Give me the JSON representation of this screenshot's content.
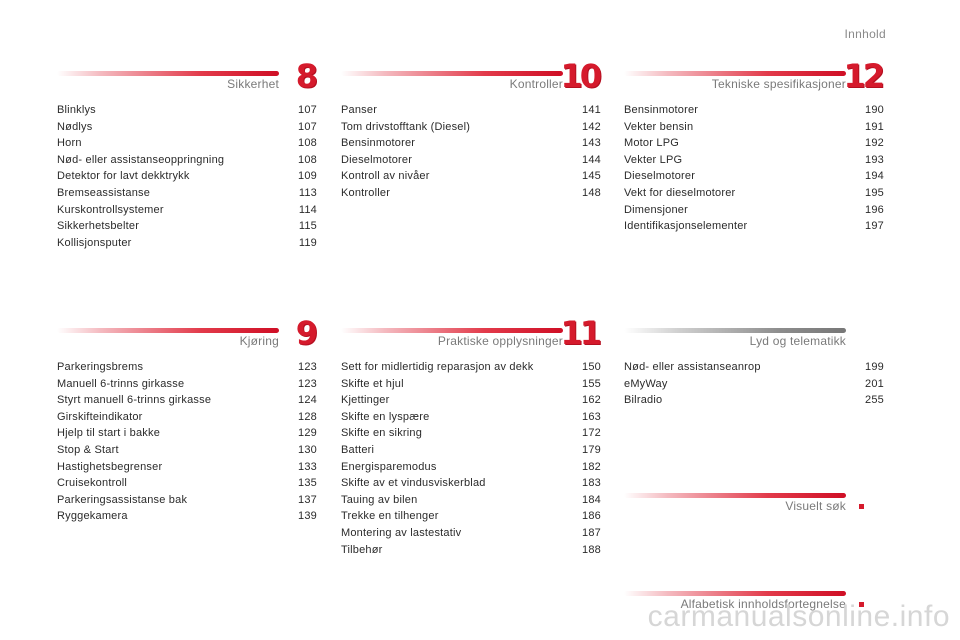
{
  "header": {
    "title": "Innhold"
  },
  "sections": {
    "s8": {
      "title": "Sikkerhet",
      "number": "8",
      "entries": [
        {
          "label": "Blinklys",
          "page": "107"
        },
        {
          "label": "Nødlys",
          "page": "107"
        },
        {
          "label": "Horn",
          "page": "108"
        },
        {
          "label": "Nød- eller assistanseoppringning",
          "page": "108"
        },
        {
          "label": "Detektor for lavt dekktrykk",
          "page": "109"
        },
        {
          "label": "Bremseassistanse",
          "page": "113"
        },
        {
          "label": "Kurskontrollsystemer",
          "page": "114"
        },
        {
          "label": "Sikkerhetsbelter",
          "page": "115"
        },
        {
          "label": "Kollisjonsputer",
          "page": "119"
        }
      ]
    },
    "s10": {
      "title": "Kontroller",
      "number": "10",
      "entries": [
        {
          "label": "Panser",
          "page": "141"
        },
        {
          "label": "Tom drivstofftank (Diesel)",
          "page": "142"
        },
        {
          "label": "Bensinmotorer",
          "page": "143"
        },
        {
          "label": "Dieselmotorer",
          "page": "144"
        },
        {
          "label": "Kontroll av nivåer",
          "page": "145"
        },
        {
          "label": "Kontroller",
          "page": "148"
        }
      ]
    },
    "s12": {
      "title": "Tekniske spesifikasjoner",
      "number": "12",
      "entries": [
        {
          "label": "Bensinmotorer",
          "page": "190"
        },
        {
          "label": "Vekter bensin",
          "page": "191"
        },
        {
          "label": "Motor LPG",
          "page": "192"
        },
        {
          "label": "Vekter LPG",
          "page": "193"
        },
        {
          "label": "Dieselmotorer",
          "page": "194"
        },
        {
          "label": "Vekt for dieselmotorer",
          "page": "195"
        },
        {
          "label": "Dimensjoner",
          "page": "196"
        },
        {
          "label": "Identifikasjonselementer",
          "page": "197"
        }
      ]
    },
    "s9": {
      "title": "Kjøring",
      "number": "9",
      "entries": [
        {
          "label": "Parkeringsbrems",
          "page": "123"
        },
        {
          "label": "Manuell 6-trinns girkasse",
          "page": "123"
        },
        {
          "label": "Styrt manuell 6-trinns girkasse",
          "page": "124"
        },
        {
          "label": "Girskifteindikator",
          "page": "128"
        },
        {
          "label": "Hjelp til start i bakke",
          "page": "129"
        },
        {
          "label": "Stop & Start",
          "page": "130"
        },
        {
          "label": "Hastighetsbegrenser",
          "page": "133"
        },
        {
          "label": "Cruisekontroll",
          "page": "135"
        },
        {
          "label": "Parkeringsassistanse bak",
          "page": "137"
        },
        {
          "label": "Ryggekamera",
          "page": "139"
        }
      ]
    },
    "s11": {
      "title": "Praktiske opplysninger",
      "number": "11",
      "entries": [
        {
          "label": "Sett for midlertidig reparasjon av dekk",
          "page": "150"
        },
        {
          "label": "Skifte et hjul",
          "page": "155"
        },
        {
          "label": "Kjettinger",
          "page": "162"
        },
        {
          "label": "Skifte en lyspære",
          "page": "163"
        },
        {
          "label": "Skifte en sikring",
          "page": "172"
        },
        {
          "label": "Batteri",
          "page": "179"
        },
        {
          "label": "Energisparemodus",
          "page": "182"
        },
        {
          "label": "Skifte av et vindusviskerblad",
          "page": "183"
        },
        {
          "label": "Tauing av bilen",
          "page": "184"
        },
        {
          "label": "Trekke en tilhenger",
          "page": "186"
        },
        {
          "label": "Montering av lastestativ",
          "page": "187"
        },
        {
          "label": "Tilbehør",
          "page": "188"
        }
      ]
    },
    "lyd": {
      "title": "Lyd og telematikk",
      "entries": [
        {
          "label": "Nød- eller assistanseanrop",
          "page": "199"
        },
        {
          "label": "eMyWay",
          "page": "201"
        },
        {
          "label": "Bilradio",
          "page": "255"
        }
      ]
    },
    "visuelt": {
      "title": "Visuelt søk"
    },
    "alfabetisk": {
      "title": "Alfabetisk innholdsfortegnelse"
    }
  },
  "watermark": "carmanualsonline.info"
}
